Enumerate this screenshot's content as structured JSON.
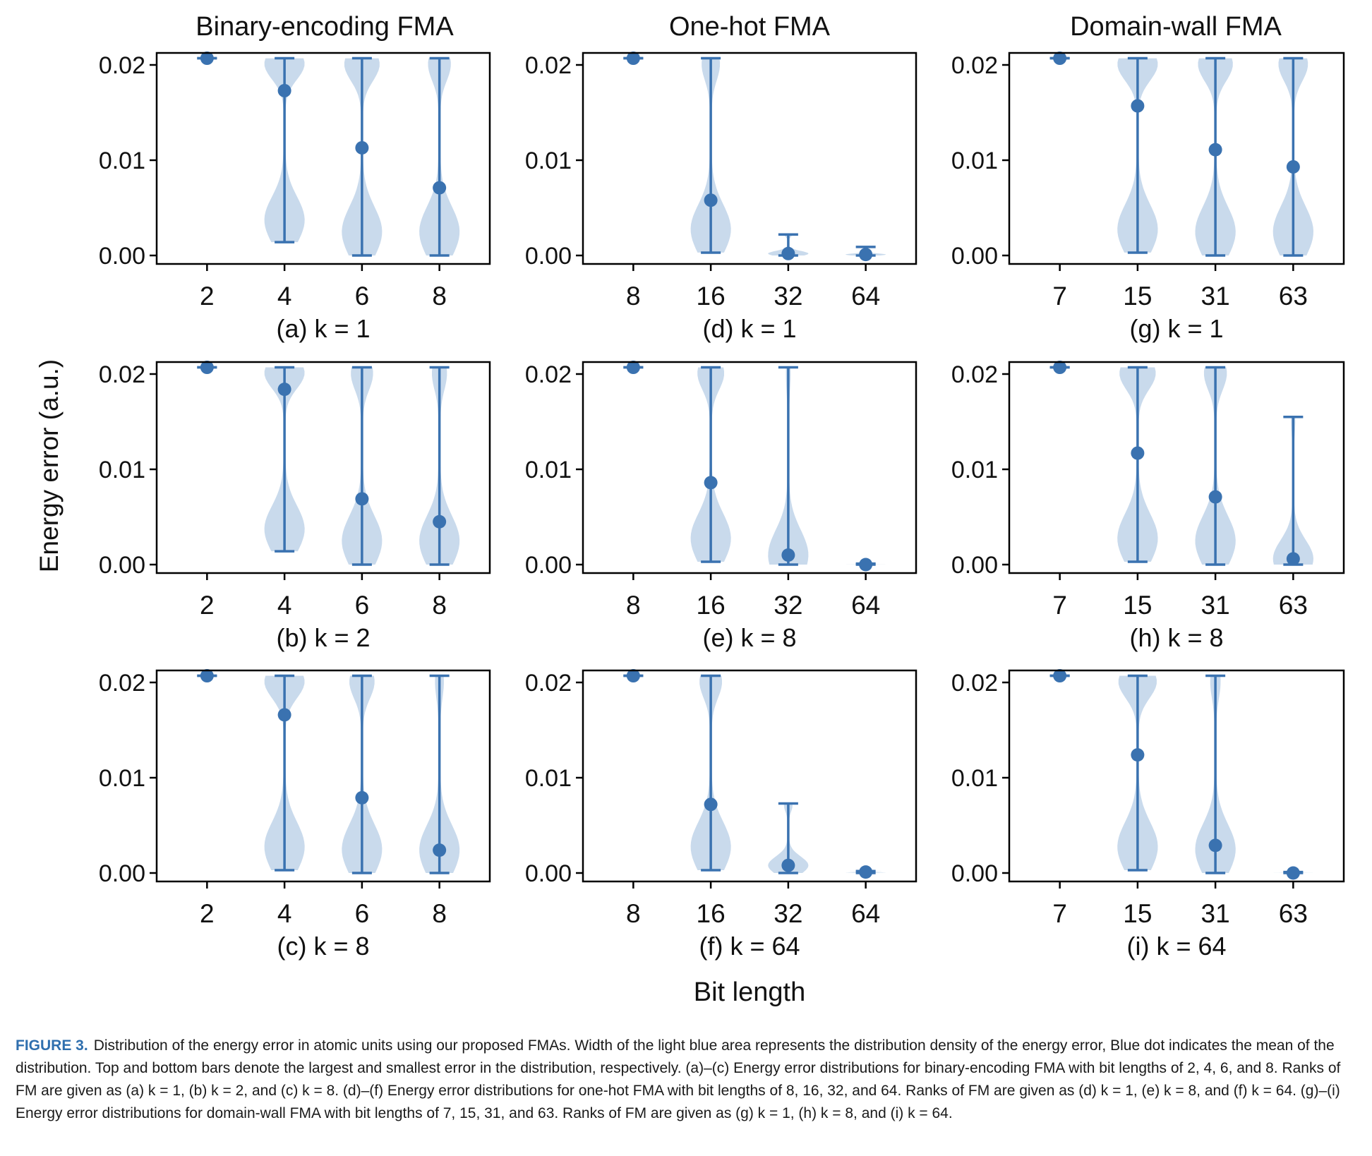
{
  "figure": {
    "column_titles": [
      "Binary-encoding FMA",
      "One-hot FMA",
      "Domain-wall FMA"
    ],
    "ylabel": "Energy error (a.u.)",
    "xlabel": "Bit length",
    "colors": {
      "violin_fill": "#c3d6ea",
      "stats": "#3a72b0",
      "axes": "#000000"
    }
  },
  "chart_data": [
    {
      "id": "a",
      "type": "violin",
      "caption": "(a) k = 1",
      "ylim": [
        0,
        0.0215
      ],
      "yticks": [
        "0.00",
        "0.01",
        "0.02"
      ],
      "categories": [
        "2",
        "4",
        "6",
        "8"
      ],
      "stats": [
        {
          "min": 0.0207,
          "max": 0.0207,
          "mean": 0.0207
        },
        {
          "min": 0.0014,
          "max": 0.0207,
          "mean": 0.0173
        },
        {
          "min": 0.0,
          "max": 0.0207,
          "mean": 0.0113
        },
        {
          "min": 0.0,
          "max": 0.0207,
          "mean": 0.0071
        }
      ]
    },
    {
      "id": "d",
      "type": "violin",
      "caption": "(d) k = 1",
      "ylim": [
        0,
        0.0215
      ],
      "yticks": [
        "0.00",
        "0.01",
        "0.02"
      ],
      "categories": [
        "8",
        "16",
        "32",
        "64"
      ],
      "stats": [
        {
          "min": 0.0207,
          "max": 0.0207,
          "mean": 0.0207
        },
        {
          "min": 0.0003,
          "max": 0.0207,
          "mean": 0.0058
        },
        {
          "min": 0.0,
          "max": 0.0022,
          "mean": 0.0002
        },
        {
          "min": 0.0,
          "max": 0.0009,
          "mean": 0.0001
        }
      ]
    },
    {
      "id": "g",
      "type": "violin",
      "caption": "(g) k = 1",
      "ylim": [
        0,
        0.0215
      ],
      "yticks": [
        "0.00",
        "0.01",
        "0.02"
      ],
      "categories": [
        "7",
        "15",
        "31",
        "63"
      ],
      "stats": [
        {
          "min": 0.0207,
          "max": 0.0207,
          "mean": 0.0207
        },
        {
          "min": 0.0003,
          "max": 0.0207,
          "mean": 0.0157
        },
        {
          "min": 0.0,
          "max": 0.0207,
          "mean": 0.0111
        },
        {
          "min": 0.0,
          "max": 0.0207,
          "mean": 0.0093
        }
      ]
    },
    {
      "id": "b",
      "type": "violin",
      "caption": "(b) k = 2",
      "ylim": [
        0,
        0.0215
      ],
      "yticks": [
        "0.00",
        "0.01",
        "0.02"
      ],
      "categories": [
        "2",
        "4",
        "6",
        "8"
      ],
      "stats": [
        {
          "min": 0.0207,
          "max": 0.0207,
          "mean": 0.0207
        },
        {
          "min": 0.0014,
          "max": 0.0207,
          "mean": 0.0184
        },
        {
          "min": 0.0,
          "max": 0.0207,
          "mean": 0.0069
        },
        {
          "min": 0.0,
          "max": 0.0207,
          "mean": 0.0045
        }
      ]
    },
    {
      "id": "e",
      "type": "violin",
      "caption": "(e) k = 8",
      "ylim": [
        0,
        0.0215
      ],
      "yticks": [
        "0.00",
        "0.01",
        "0.02"
      ],
      "categories": [
        "8",
        "16",
        "32",
        "64"
      ],
      "stats": [
        {
          "min": 0.0207,
          "max": 0.0207,
          "mean": 0.0207
        },
        {
          "min": 0.0003,
          "max": 0.0207,
          "mean": 0.0086
        },
        {
          "min": 0.0,
          "max": 0.0207,
          "mean": 0.001
        },
        {
          "min": 0.0,
          "max": 0.0001,
          "mean": 0.0
        }
      ]
    },
    {
      "id": "h",
      "type": "violin",
      "caption": "(h) k = 8",
      "ylim": [
        0,
        0.0215
      ],
      "yticks": [
        "0.00",
        "0.01",
        "0.02"
      ],
      "categories": [
        "7",
        "15",
        "31",
        "63"
      ],
      "stats": [
        {
          "min": 0.0207,
          "max": 0.0207,
          "mean": 0.0207
        },
        {
          "min": 0.0003,
          "max": 0.0207,
          "mean": 0.0117
        },
        {
          "min": 0.0,
          "max": 0.0207,
          "mean": 0.0071
        },
        {
          "min": 0.0,
          "max": 0.0155,
          "mean": 0.0006
        }
      ]
    },
    {
      "id": "c",
      "type": "violin",
      "caption": "(c) k = 8",
      "ylim": [
        0,
        0.0215
      ],
      "yticks": [
        "0.00",
        "0.01",
        "0.02"
      ],
      "categories": [
        "2",
        "4",
        "6",
        "8"
      ],
      "stats": [
        {
          "min": 0.0207,
          "max": 0.0207,
          "mean": 0.0207
        },
        {
          "min": 0.0003,
          "max": 0.0207,
          "mean": 0.0166
        },
        {
          "min": 0.0,
          "max": 0.0207,
          "mean": 0.0079
        },
        {
          "min": 0.0,
          "max": 0.0207,
          "mean": 0.0024
        }
      ]
    },
    {
      "id": "f",
      "type": "violin",
      "caption": "(f) k = 64",
      "ylim": [
        0,
        0.0215
      ],
      "yticks": [
        "0.00",
        "0.01",
        "0.02"
      ],
      "categories": [
        "8",
        "16",
        "32",
        "64"
      ],
      "stats": [
        {
          "min": 0.0207,
          "max": 0.0207,
          "mean": 0.0207
        },
        {
          "min": 0.0003,
          "max": 0.0207,
          "mean": 0.0072
        },
        {
          "min": 0.0,
          "max": 0.0073,
          "mean": 0.0008
        },
        {
          "min": 0.0,
          "max": 0.0002,
          "mean": 0.0001
        }
      ]
    },
    {
      "id": "i",
      "type": "violin",
      "caption": "(i) k = 64",
      "ylim": [
        0,
        0.0215
      ],
      "yticks": [
        "0.00",
        "0.01",
        "0.02"
      ],
      "categories": [
        "7",
        "15",
        "31",
        "63"
      ],
      "stats": [
        {
          "min": 0.0207,
          "max": 0.0207,
          "mean": 0.0207
        },
        {
          "min": 0.0003,
          "max": 0.0207,
          "mean": 0.0124
        },
        {
          "min": 0.0,
          "max": 0.0207,
          "mean": 0.0029
        },
        {
          "min": 0.0,
          "max": 0.0001,
          "mean": 0.0
        }
      ]
    }
  ],
  "caption": {
    "label": "FIGURE 3.",
    "text": "Distribution of the energy error in atomic units using our proposed FMAs. Width of the light blue area represents the distribution density of the energy error, Blue dot indicates the mean of the distribution. Top and bottom bars denote the largest and smallest error in the distribution, respectively. (a)–(c) Energy error distributions for binary-encoding FMA with bit lengths of 2, 4, 6, and 8. Ranks of FM are given as (a) k = 1, (b) k = 2, and (c) k = 8. (d)–(f) Energy error distributions for one-hot FMA with bit lengths of 8, 16, 32, and 64. Ranks of FM are given as (d) k = 1, (e) k = 8, and (f) k = 64. (g)–(i) Energy error distributions for domain-wall FMA with bit lengths of 7, 15, 31, and 63. Ranks of FM are given as (g) k = 1, (h) k = 8, and (i) k = 64."
  }
}
